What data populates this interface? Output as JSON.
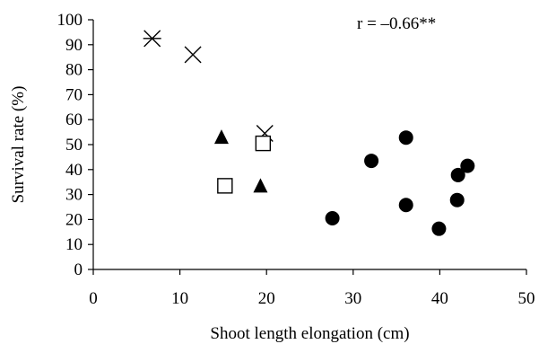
{
  "chart_data": {
    "type": "scatter",
    "title": "",
    "xlabel": "Shoot length elongation (cm)",
    "ylabel": "Survival rate (%)",
    "xlim": [
      0,
      50
    ],
    "ylim": [
      0,
      100
    ],
    "xticks": [
      0,
      10,
      20,
      30,
      40,
      50
    ],
    "yticks": [
      0,
      10,
      20,
      30,
      40,
      50,
      60,
      70,
      80,
      90,
      100
    ],
    "grid": false,
    "legend": "none",
    "annotation": "r = –0.66**",
    "series": [
      {
        "marker": "asterisk",
        "color": "#000000",
        "points": [
          [
            6.8,
            92.5
          ]
        ]
      },
      {
        "marker": "x",
        "color": "#000000",
        "points": [
          [
            11.5,
            86
          ],
          [
            19.8,
            54.5
          ]
        ]
      },
      {
        "marker": "triangle",
        "color": "#000000",
        "points": [
          [
            14.8,
            53
          ],
          [
            19.3,
            33.5
          ]
        ]
      },
      {
        "marker": "square",
        "color": "#000000",
        "points": [
          [
            15.2,
            33.5
          ],
          [
            19.6,
            50.5
          ]
        ]
      },
      {
        "marker": "circle",
        "color": "#000000",
        "points": [
          [
            27.6,
            20.5
          ],
          [
            32.1,
            43.5
          ],
          [
            36.1,
            52.8
          ],
          [
            36.1,
            25.8
          ],
          [
            39.9,
            16.3
          ],
          [
            42.0,
            27.8
          ],
          [
            42.1,
            37.8
          ],
          [
            43.2,
            41.5
          ]
        ]
      }
    ]
  }
}
